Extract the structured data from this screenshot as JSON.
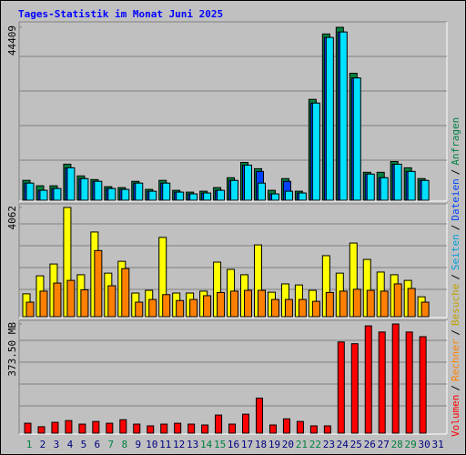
{
  "legend_separator": "/",
  "chart_data": [
    {
      "type": "bar",
      "title": "Tages-Statistik im Monat Juni 2025",
      "ylim": [
        0,
        44409
      ],
      "yticks": [
        44409
      ],
      "series": [
        {
          "name": "Anfragen",
          "color": "#008040",
          "values": [
            5100,
            3700,
            3700,
            9250,
            6240,
            5300,
            3470,
            3240,
            4850,
            2780,
            5100,
            2540,
            2080,
            2310,
            3240,
            5780,
            9700,
            8090,
            2540,
            5550,
            2310,
            25900,
            42700,
            44409,
            32600,
            7170,
            7170,
            9940,
            8320,
            5550,
            null
          ]
        },
        {
          "name": "Dateien",
          "color": "#0040ff",
          "values": [
            4390,
            2540,
            3000,
            8320,
            5540,
            4850,
            3000,
            2770,
            4390,
            2310,
            4390,
            2080,
            1620,
            1850,
            2540,
            5080,
            9010,
            7390,
            1620,
            4850,
            1850,
            24950,
            41800,
            43200,
            31400,
            6700,
            5780,
            9240,
            7390,
            5080,
            null
          ]
        },
        {
          "name": "Seiten",
          "color": "#00e0ff",
          "values": [
            4390,
            2540,
            3000,
            8320,
            5540,
            4850,
            3000,
            2770,
            4390,
            2310,
            4390,
            2080,
            1620,
            1850,
            2540,
            5080,
            9010,
            4390,
            1620,
            2310,
            1850,
            24950,
            41800,
            43200,
            31400,
            6700,
            5780,
            9240,
            7390,
            5080,
            null
          ]
        }
      ]
    },
    {
      "type": "bar",
      "ylim": [
        0,
        4062
      ],
      "yticks": [
        4062
      ],
      "series": [
        {
          "name": "Besuche",
          "color": "#ffff00",
          "values": [
            850,
            1520,
            1960,
            4062,
            1560,
            3150,
            1620,
            2060,
            880,
            980,
            2950,
            880,
            880,
            950,
            2030,
            1760,
            1560,
            2670,
            910,
            1220,
            1180,
            980,
            2270,
            1620,
            2740,
            2130,
            1660,
            1560,
            1350,
            740,
            null
          ]
        },
        {
          "name": "Rechner",
          "color": "#ff8000",
          "values": [
            540,
            950,
            1250,
            1350,
            1000,
            2460,
            1150,
            1790,
            540,
            640,
            820,
            600,
            640,
            780,
            900,
            950,
            980,
            980,
            640,
            640,
            640,
            570,
            900,
            950,
            1020,
            980,
            950,
            1220,
            1050,
            540,
            null
          ]
        }
      ]
    },
    {
      "type": "bar",
      "ylim": [
        0,
        373.5
      ],
      "yticks": [
        {
          "value": 373.5,
          "label": "373.50 MB"
        }
      ],
      "categories": [
        "1",
        "2",
        "3",
        "4",
        "5",
        "6",
        "7",
        "8",
        "9",
        "10",
        "11",
        "12",
        "13",
        "14",
        "15",
        "16",
        "17",
        "18",
        "19",
        "20",
        "21",
        "22",
        "23",
        "24",
        "25",
        "26",
        "27",
        "28",
        "29",
        "30",
        "31"
      ],
      "category_colors": [
        "#008040",
        "#000080",
        "#000080",
        "#000080",
        "#000080",
        "#000080",
        "#008040",
        "#008040",
        "#000080",
        "#000080",
        "#000080",
        "#000080",
        "#000080",
        "#008040",
        "#008040",
        "#000080",
        "#000080",
        "#000080",
        "#000080",
        "#000080",
        "#008040",
        "#008040",
        "#000080",
        "#000080",
        "#000080",
        "#000080",
        "#000080",
        "#008040",
        "#008040",
        "#000080",
        "#000080"
      ],
      "series": [
        {
          "name": "Volumen",
          "color": "#ff0000",
          "values": [
            34,
            22,
            37,
            43,
            31,
            40,
            34,
            46,
            31,
            25,
            31,
            34,
            31,
            28,
            62,
            31,
            65,
            120,
            28,
            49,
            40,
            25,
            25,
            312,
            306,
            367,
            346,
            373.5,
            346,
            330,
            null
          ]
        }
      ]
    }
  ]
}
